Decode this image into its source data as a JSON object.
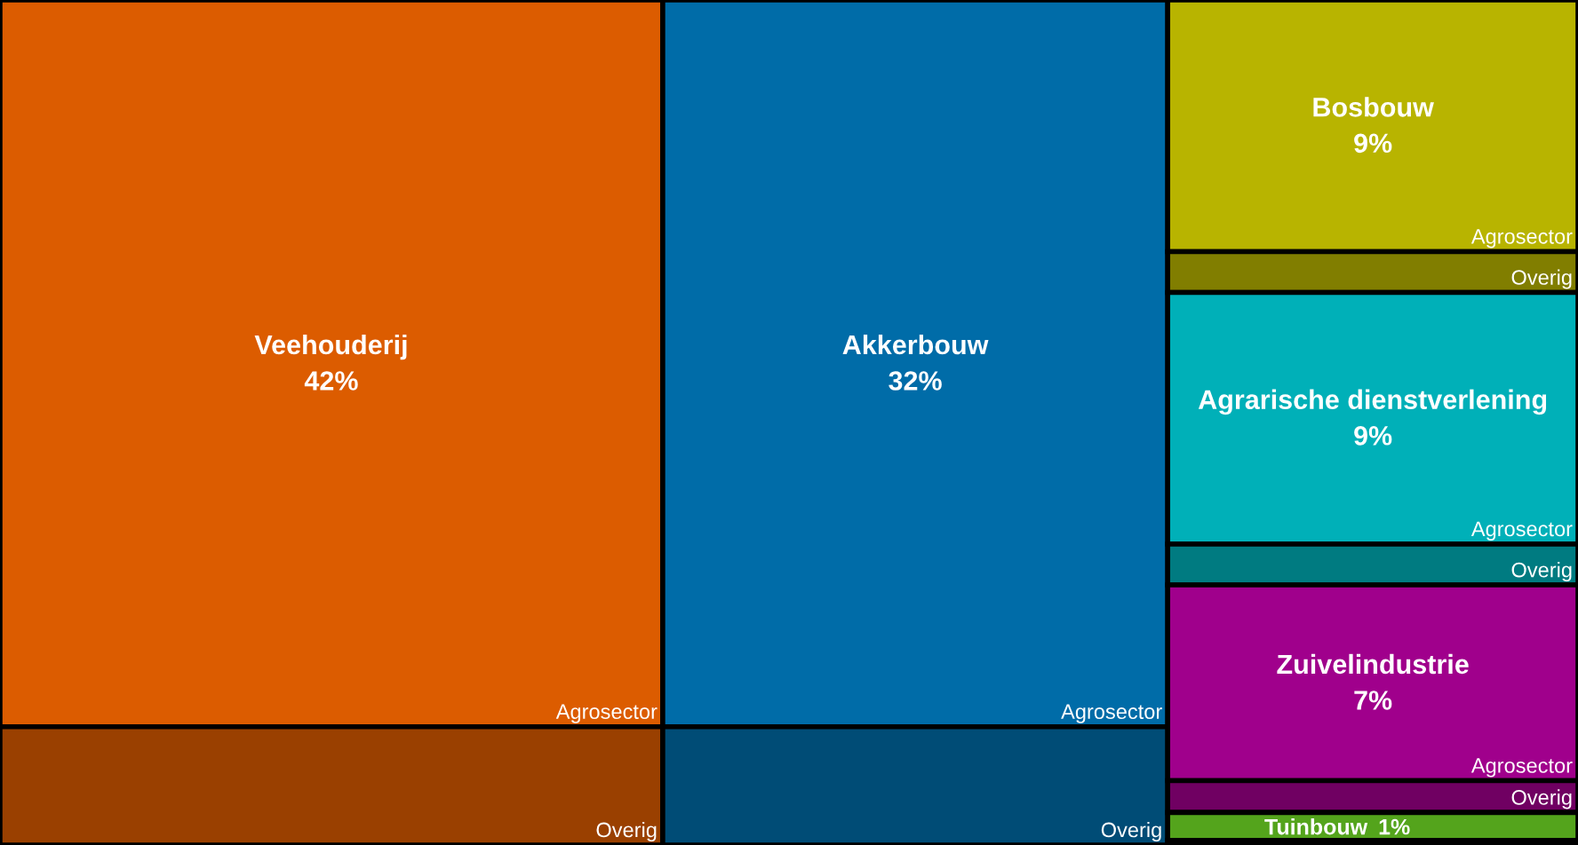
{
  "chart_data": {
    "type": "other",
    "categories": [
      "Veehouderij",
      "Akkerbouw",
      "Bosbouw",
      "Agrarische dienstverlening",
      "Zuivelindustrie",
      "Tuinbouw"
    ],
    "values": [
      42,
      32,
      9,
      9,
      7,
      1
    ],
    "value_labels": [
      "42%",
      "32%",
      "9%",
      "9%",
      "7%",
      "1%"
    ],
    "colors": [
      "#dc5c00",
      "#006ca8",
      "#b8b400",
      "#00b0b8",
      "#a0008c",
      "#54a41c"
    ],
    "annotations": [
      "Agrosector",
      "Overig"
    ]
  }
}
